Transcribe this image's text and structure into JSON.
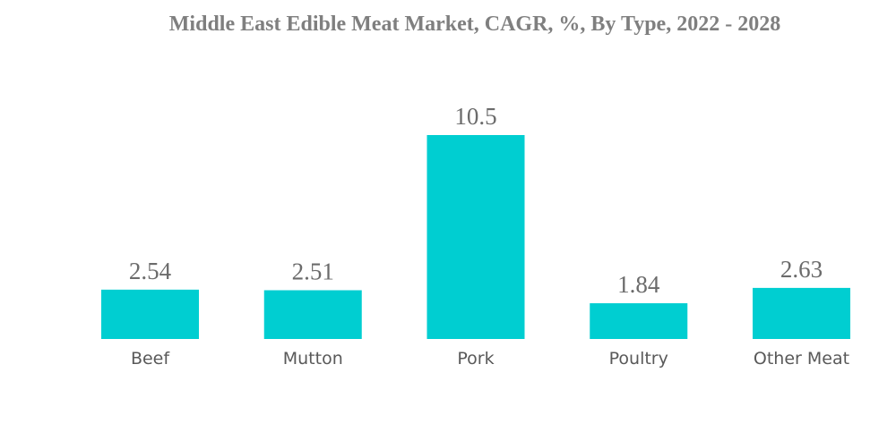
{
  "chart_data": {
    "type": "bar",
    "title": "Middle East Edible Meat Market, CAGR, %, By Type, 2022 - 2028",
    "categories": [
      "Beef",
      "Mutton",
      "Pork",
      "Poultry",
      "Other Meat"
    ],
    "values": [
      2.54,
      2.51,
      10.5,
      1.84,
      2.63
    ],
    "value_labels": [
      "2.54",
      "2.51",
      "10.5",
      "1.84",
      "2.63"
    ],
    "xlabel": "",
    "ylabel": "",
    "ylim": [
      0,
      10.5
    ],
    "grid": false,
    "bar_color": "#00CED1"
  }
}
